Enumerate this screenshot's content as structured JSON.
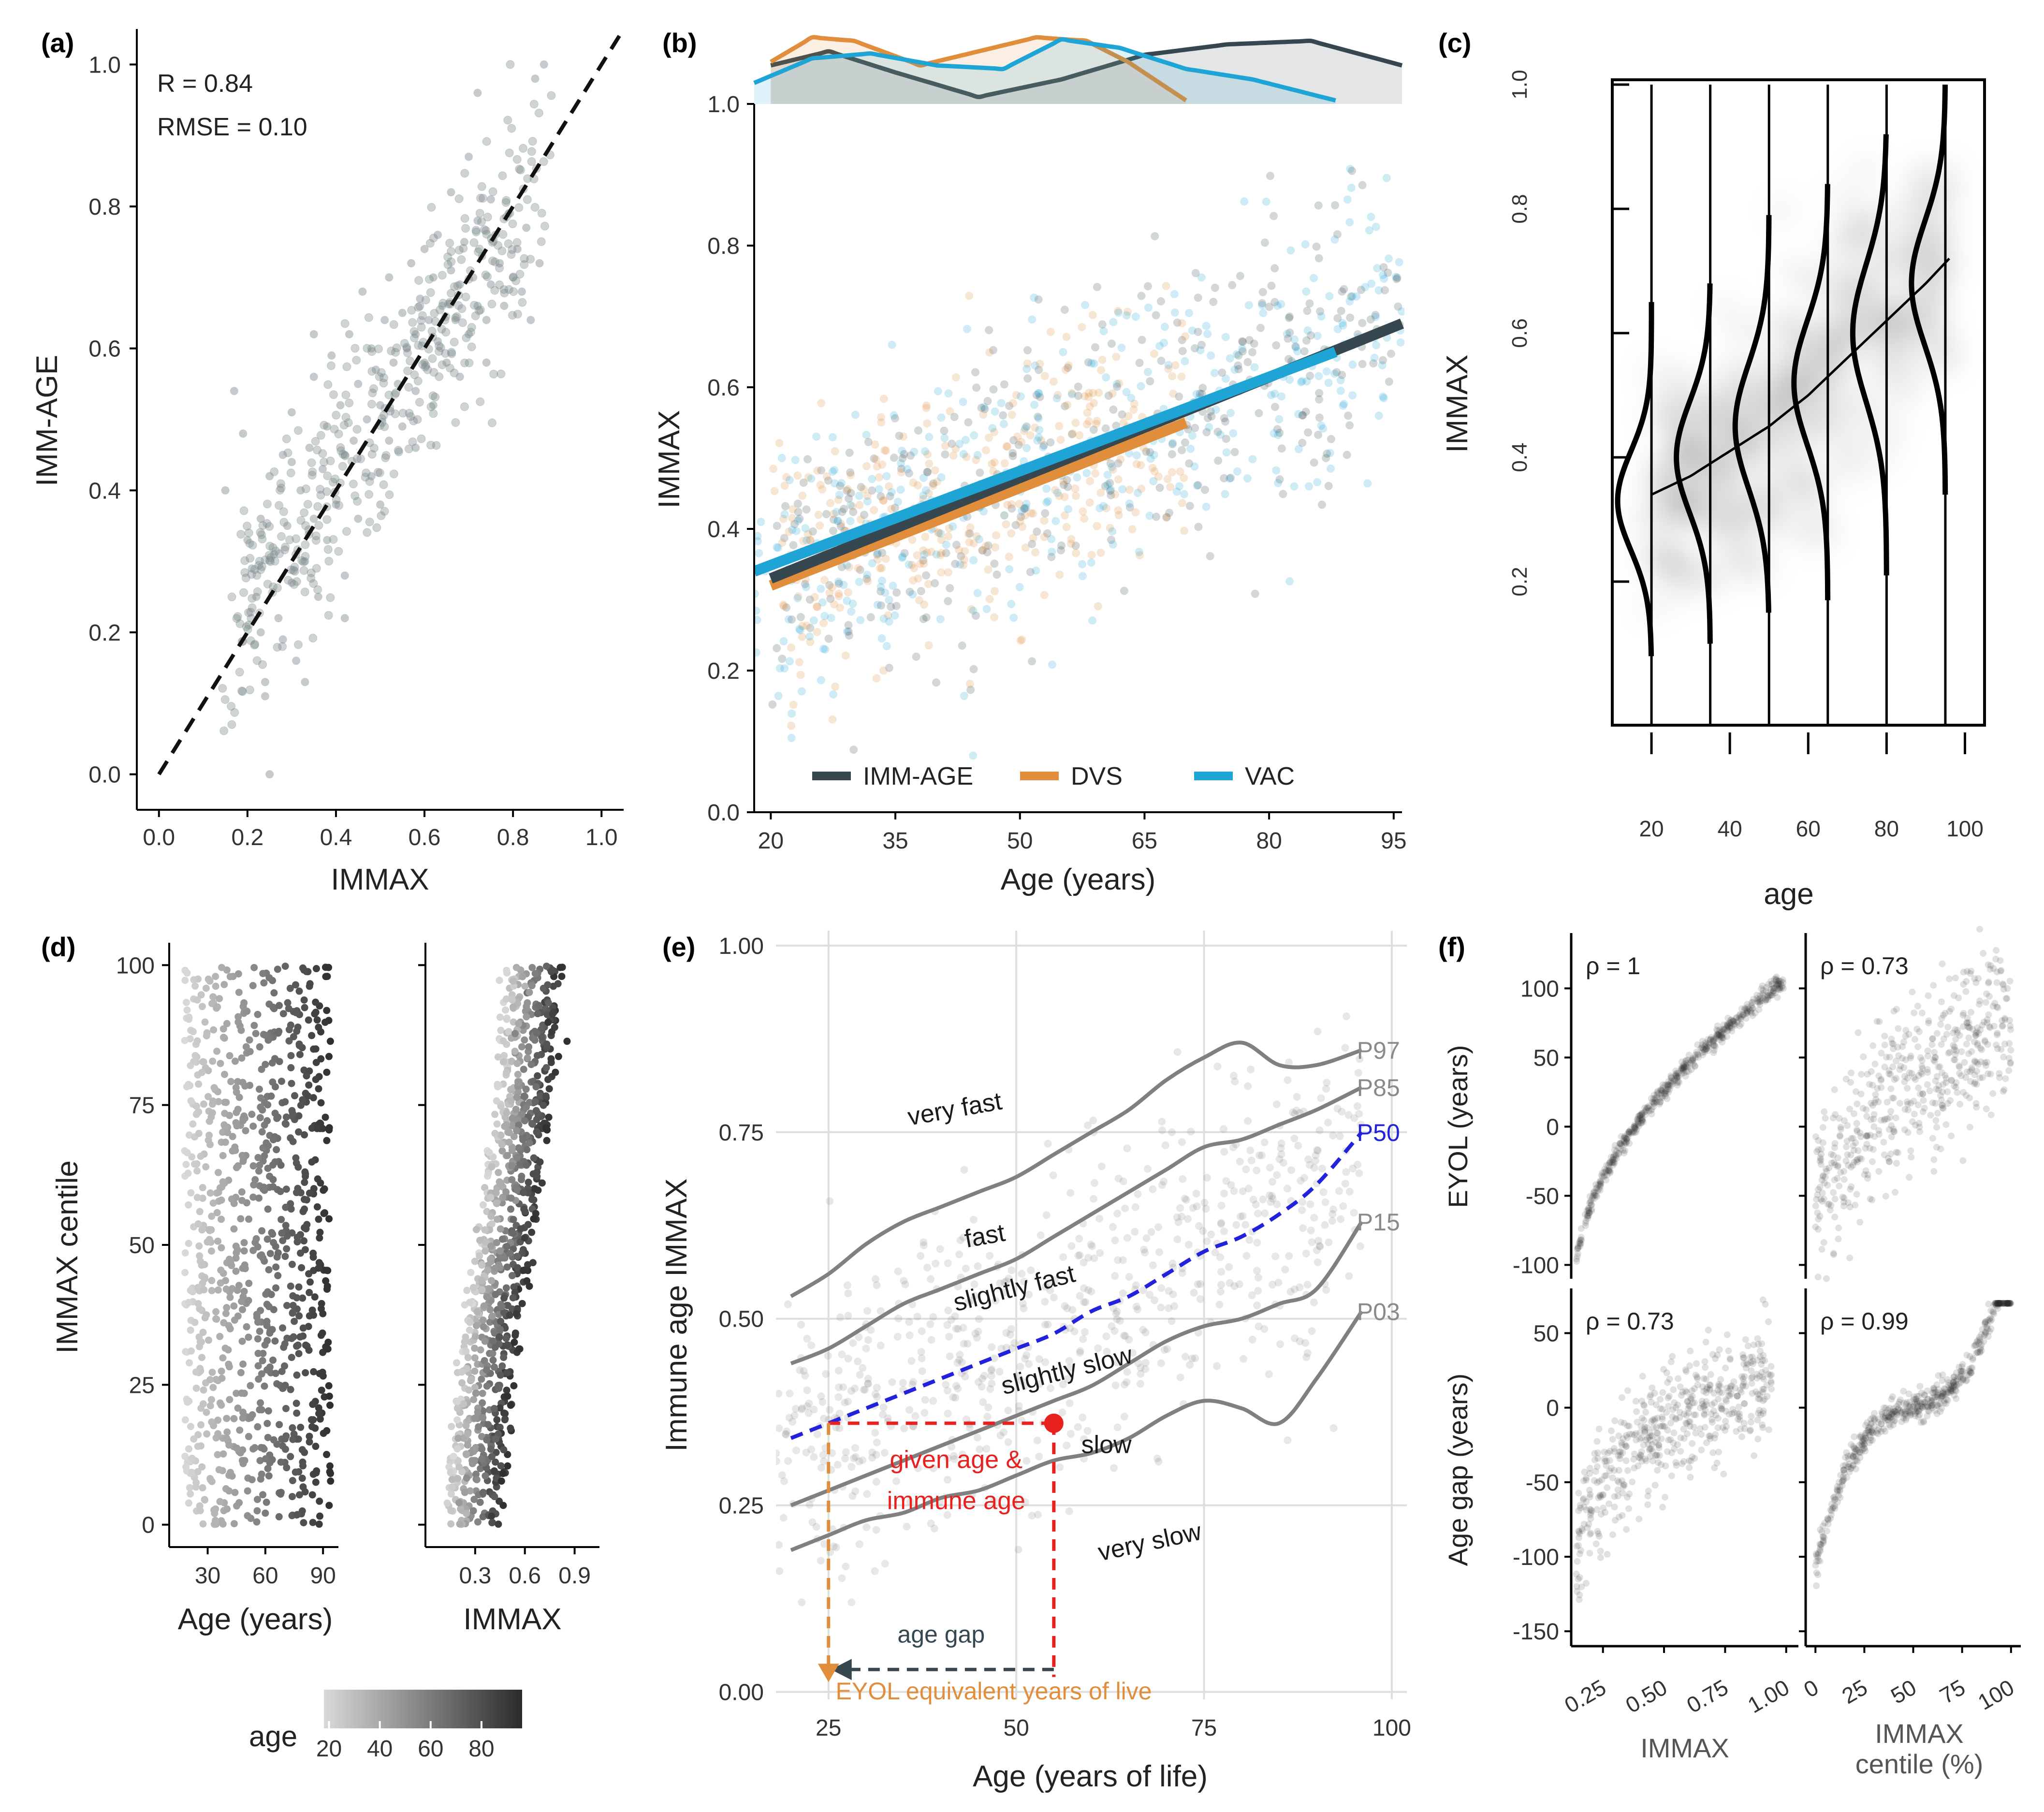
{
  "panels": {
    "a": {
      "letter": "(a)"
    },
    "b": {
      "letter": "(b)"
    },
    "c": {
      "letter": "(c)"
    },
    "d": {
      "letter": "(d)"
    },
    "e": {
      "letter": "(e)"
    },
    "f": {
      "letter": "(f)"
    }
  },
  "chart_data": [
    {
      "id": "a",
      "type": "scatter",
      "xlabel": "IMMAX",
      "ylabel": "IMM-AGE",
      "xlim": [
        -0.05,
        1.05
      ],
      "ylim": [
        -0.05,
        1.05
      ],
      "xticks": [
        "0.0",
        "0.2",
        "0.4",
        "0.6",
        "0.8",
        "1.0"
      ],
      "yticks": [
        "0.0",
        "0.2",
        "0.4",
        "0.6",
        "0.8",
        "1.0"
      ],
      "annotations": [
        "R =  0.84",
        "RMSE = 0.10"
      ],
      "reference_line": {
        "x": [
          0,
          1.05
        ],
        "y": [
          0,
          1.05
        ],
        "style": "dashed"
      },
      "points": [
        [
          0.15,
          0.4
        ],
        [
          0.17,
          0.54
        ],
        [
          0.19,
          0.48
        ],
        [
          0.2,
          0.33
        ],
        [
          0.21,
          0.29
        ],
        [
          0.22,
          0.25
        ],
        [
          0.23,
          0.2
        ],
        [
          0.23,
          0.36
        ],
        [
          0.24,
          0.13
        ],
        [
          0.24,
          0.11
        ],
        [
          0.25,
          0.0
        ],
        [
          0.25,
          0.42
        ],
        [
          0.26,
          0.31
        ],
        [
          0.27,
          0.22
        ],
        [
          0.28,
          0.19
        ],
        [
          0.28,
          0.45
        ],
        [
          0.29,
          0.35
        ],
        [
          0.3,
          0.27
        ],
        [
          0.3,
          0.51
        ],
        [
          0.31,
          0.16
        ],
        [
          0.32,
          0.4
        ],
        [
          0.33,
          0.3
        ],
        [
          0.33,
          0.13
        ],
        [
          0.34,
          0.46
        ],
        [
          0.35,
          0.36
        ],
        [
          0.35,
          0.56
        ],
        [
          0.36,
          0.25
        ],
        [
          0.37,
          0.43
        ],
        [
          0.38,
          0.49
        ],
        [
          0.38,
          0.33
        ],
        [
          0.39,
          0.59
        ],
        [
          0.4,
          0.38
        ],
        [
          0.41,
          0.52
        ],
        [
          0.42,
          0.28
        ],
        [
          0.42,
          0.45
        ],
        [
          0.43,
          0.62
        ],
        [
          0.44,
          0.47
        ],
        [
          0.45,
          0.55
        ],
        [
          0.45,
          0.36
        ],
        [
          0.46,
          0.68
        ],
        [
          0.47,
          0.5
        ],
        [
          0.48,
          0.42
        ],
        [
          0.48,
          0.6
        ],
        [
          0.49,
          0.57
        ],
        [
          0.5,
          0.52
        ],
        [
          0.51,
          0.64
        ],
        [
          0.52,
          0.47
        ],
        [
          0.52,
          0.7
        ],
        [
          0.53,
          0.58
        ],
        [
          0.54,
          0.55
        ],
        [
          0.55,
          0.65
        ],
        [
          0.55,
          0.49
        ],
        [
          0.56,
          0.6
        ],
        [
          0.57,
          0.72
        ],
        [
          0.58,
          0.62
        ],
        [
          0.58,
          0.54
        ],
        [
          0.59,
          0.67
        ],
        [
          0.6,
          0.74
        ],
        [
          0.6,
          0.58
        ],
        [
          0.61,
          0.64
        ],
        [
          0.62,
          0.7
        ],
        [
          0.63,
          0.61
        ],
        [
          0.63,
          0.76
        ],
        [
          0.64,
          0.66
        ],
        [
          0.65,
          0.58
        ],
        [
          0.66,
          0.71
        ],
        [
          0.66,
          0.82
        ],
        [
          0.67,
          0.64
        ],
        [
          0.68,
          0.69
        ],
        [
          0.69,
          0.75
        ],
        [
          0.7,
          0.62
        ],
        [
          0.7,
          0.87
        ],
        [
          0.71,
          0.7
        ],
        [
          0.72,
          0.66
        ],
        [
          0.72,
          0.78
        ],
        [
          0.73,
          0.73
        ],
        [
          0.74,
          0.64
        ],
        [
          0.75,
          0.81
        ],
        [
          0.75,
          0.69
        ],
        [
          0.76,
          0.76
        ],
        [
          0.77,
          0.72
        ],
        [
          0.78,
          0.66
        ],
        [
          0.79,
          0.79
        ],
        [
          0.8,
          0.7
        ],
        [
          0.81,
          0.74
        ],
        [
          0.82,
          0.68
        ],
        [
          0.83,
          0.77
        ],
        [
          0.84,
          0.64
        ],
        [
          0.85,
          0.98
        ],
        [
          0.86,
          0.72
        ],
        [
          0.87,
          1.0
        ],
        [
          0.72,
          0.96
        ],
        [
          0.74,
          0.58
        ],
        [
          0.35,
          0.62
        ],
        [
          0.42,
          0.22
        ],
        [
          0.3,
          0.44
        ],
        [
          0.5,
          0.38
        ],
        [
          0.58,
          0.46
        ],
        [
          0.62,
          0.52
        ],
        [
          0.68,
          0.56
        ]
      ],
      "cloud_model": {
        "slope": 0.92,
        "intercept": 0.05,
        "n": 420
      }
    },
    {
      "id": "b",
      "type": "scatter",
      "xlabel": "Age (years)",
      "ylabel": "IMMAX",
      "xlim": [
        18,
        96
      ],
      "ylim": [
        0,
        1.0
      ],
      "xticks": [
        "20",
        "35",
        "50",
        "65",
        "80",
        "95"
      ],
      "yticks": [
        "0.0",
        "0.2",
        "0.4",
        "0.6",
        "0.8",
        "1.0"
      ],
      "legend_position": "bottom",
      "series": [
        {
          "name": "IMM-AGE",
          "color": "#37474f",
          "line": {
            "x": [
              20,
              96
            ],
            "y": [
              0.33,
              0.69
            ]
          },
          "density": {
            "x": [
              20,
              27,
              35,
              45,
              55,
              65,
              75,
              85,
              96
            ],
            "y": [
              0.55,
              0.75,
              0.45,
              0.1,
              0.35,
              0.7,
              0.85,
              0.9,
              0.55
            ]
          },
          "cloud": {
            "xmin": 20,
            "xmax": 96,
            "n": 380
          }
        },
        {
          "name": "DVS",
          "color": "#e08d3c",
          "line": {
            "x": [
              20,
              70
            ],
            "y": [
              0.32,
              0.55
            ]
          },
          "density": {
            "x": [
              20,
              25,
              30,
              38,
              45,
              52,
              58,
              63,
              70
            ],
            "y": [
              0.6,
              0.95,
              0.9,
              0.55,
              0.75,
              0.95,
              0.9,
              0.6,
              0.05
            ]
          },
          "cloud": {
            "xmin": 20,
            "xmax": 70,
            "n": 360
          }
        },
        {
          "name": "VAC",
          "color": "#1ea5d6",
          "line": {
            "x": [
              18,
              88
            ],
            "y": [
              0.34,
              0.65
            ]
          },
          "density": {
            "x": [
              18,
              25,
              32,
              40,
              48,
              55,
              62,
              70,
              78,
              88
            ],
            "y": [
              0.3,
              0.65,
              0.72,
              0.55,
              0.5,
              0.92,
              0.8,
              0.5,
              0.35,
              0.05
            ]
          },
          "cloud": {
            "xmin": 18,
            "xmax": 96,
            "n": 400
          }
        }
      ]
    },
    {
      "id": "c",
      "type": "heatmap",
      "xlabel": "age",
      "ylabel": "IMMAX",
      "xlim": [
        10,
        105
      ],
      "ylim": [
        0,
        1.0
      ],
      "xticks": [
        "20",
        "40",
        "60",
        "80",
        "100"
      ],
      "yticks": [
        "0.2",
        "0.4",
        "0.6",
        "0.8",
        "1.0"
      ],
      "trend": {
        "x": [
          20,
          30,
          40,
          50,
          60,
          70,
          80,
          90,
          96
        ],
        "y": [
          0.34,
          0.37,
          0.41,
          0.45,
          0.5,
          0.56,
          0.62,
          0.68,
          0.72
        ]
      },
      "densities": [
        {
          "age": 20,
          "mean": 0.33,
          "sd": 0.08,
          "ymin": 0.08,
          "ymax": 0.65
        },
        {
          "age": 35,
          "mean": 0.4,
          "sd": 0.09,
          "ymin": 0.1,
          "ymax": 0.68
        },
        {
          "age": 50,
          "mean": 0.45,
          "sd": 0.1,
          "ymin": 0.15,
          "ymax": 0.79
        },
        {
          "age": 65,
          "mean": 0.52,
          "sd": 0.1,
          "ymin": 0.17,
          "ymax": 0.84
        },
        {
          "age": 80,
          "mean": 0.6,
          "sd": 0.11,
          "ymin": 0.21,
          "ymax": 0.92
        },
        {
          "age": 95,
          "mean": 0.68,
          "sd": 0.1,
          "ymin": 0.34,
          "ymax": 1.0
        }
      ]
    },
    {
      "id": "d_left",
      "type": "scatter",
      "xlabel": "Age (years)",
      "ylabel": "IMMAX centile",
      "xlim": [
        10,
        98
      ],
      "ylim": [
        -4,
        104
      ],
      "xticks": [
        "30",
        "60",
        "90"
      ],
      "yticks": [
        "0",
        "25",
        "50",
        "75",
        "100"
      ],
      "cloud": {
        "n": 900,
        "xmin": 18,
        "xmax": 94
      }
    },
    {
      "id": "d_right",
      "type": "scatter",
      "xlabel": "IMMAX",
      "xlim": [
        0.0,
        1.05
      ],
      "ylim": [
        -4,
        104
      ],
      "xticks": [
        "0.3",
        "0.6",
        "0.9"
      ],
      "cloud": {
        "n": 900
      }
    },
    {
      "id": "d_legend",
      "type": "legend",
      "title": "age",
      "ticks": [
        "20",
        "40",
        "60",
        "80"
      ],
      "range": [
        18,
        96
      ],
      "colors": [
        "#d9d9d9",
        "#2b2b2b"
      ]
    },
    {
      "id": "e",
      "type": "line",
      "xlabel": "Age (years of life)",
      "ylabel": "Immune age IMMAX",
      "xlim": [
        18,
        102
      ],
      "ylim": [
        -0.01,
        1.02
      ],
      "xticks": [
        "25",
        "50",
        "75",
        "100"
      ],
      "yticks": [
        "0.00",
        "0.25",
        "0.50",
        "0.75",
        "1.00"
      ],
      "series": [
        {
          "name": "P97",
          "style": "solid",
          "color": "#808080",
          "x": [
            20,
            25,
            30,
            35,
            40,
            45,
            50,
            55,
            60,
            65,
            70,
            75,
            80,
            85,
            90,
            96
          ],
          "y": [
            0.53,
            0.56,
            0.6,
            0.63,
            0.65,
            0.67,
            0.69,
            0.72,
            0.75,
            0.78,
            0.82,
            0.85,
            0.87,
            0.84,
            0.84,
            0.86
          ]
        },
        {
          "name": "P85",
          "style": "solid",
          "color": "#808080",
          "x": [
            20,
            25,
            30,
            35,
            40,
            45,
            50,
            55,
            60,
            65,
            70,
            75,
            80,
            85,
            90,
            96
          ],
          "y": [
            0.44,
            0.46,
            0.49,
            0.52,
            0.54,
            0.56,
            0.58,
            0.61,
            0.64,
            0.67,
            0.7,
            0.73,
            0.74,
            0.76,
            0.78,
            0.81
          ]
        },
        {
          "name": "P50",
          "style": "dashed",
          "color": "#2222dd",
          "x": [
            20,
            25,
            30,
            35,
            40,
            45,
            50,
            55,
            60,
            65,
            70,
            75,
            80,
            85,
            90,
            96
          ],
          "y": [
            0.34,
            0.36,
            0.38,
            0.4,
            0.42,
            0.44,
            0.46,
            0.48,
            0.51,
            0.53,
            0.56,
            0.59,
            0.61,
            0.64,
            0.68,
            0.75
          ]
        },
        {
          "name": "P15",
          "style": "solid",
          "color": "#808080",
          "x": [
            20,
            25,
            30,
            35,
            40,
            45,
            50,
            55,
            60,
            65,
            70,
            75,
            80,
            85,
            90,
            96
          ],
          "y": [
            0.25,
            0.27,
            0.29,
            0.31,
            0.33,
            0.35,
            0.37,
            0.39,
            0.41,
            0.44,
            0.47,
            0.49,
            0.5,
            0.52,
            0.54,
            0.63
          ]
        },
        {
          "name": "P03",
          "style": "solid",
          "color": "#808080",
          "x": [
            20,
            25,
            30,
            35,
            40,
            45,
            50,
            55,
            60,
            65,
            70,
            75,
            80,
            85,
            90,
            96
          ],
          "y": [
            0.19,
            0.21,
            0.23,
            0.24,
            0.26,
            0.27,
            0.29,
            0.31,
            0.32,
            0.34,
            0.37,
            0.39,
            0.38,
            0.36,
            0.42,
            0.51
          ]
        }
      ],
      "region_labels": [
        {
          "text": "very fast",
          "x": 42,
          "y": 0.77,
          "angle": -10
        },
        {
          "text": "fast",
          "x": 46,
          "y": 0.6,
          "angle": -10
        },
        {
          "text": "slightly fast",
          "x": 50,
          "y": 0.53,
          "angle": -14
        },
        {
          "text": "slightly slow",
          "x": 57,
          "y": 0.42,
          "angle": -14
        },
        {
          "text": "slow",
          "x": 62,
          "y": 0.32,
          "angle": 0
        },
        {
          "text": "very slow",
          "x": 68,
          "y": 0.19,
          "angle": -12
        }
      ],
      "curve_labels": [
        "P97",
        "P85",
        "P50",
        "P15",
        "P03"
      ],
      "example": {
        "age": 55,
        "immax": 0.36,
        "eyol": 25,
        "label_line1": "given age &",
        "label_line2": "immune age",
        "gap_label": "age gap",
        "eyol_label": "EYOL equivalent years of live"
      },
      "cloud": {
        "n": 700,
        "xmin": 18,
        "xmax": 96
      }
    },
    {
      "id": "f",
      "type": "scatter",
      "rows": [
        {
          "ylabel": "EYOL (years)",
          "yticks": [
            "100",
            "50",
            "0",
            "-50",
            "-100"
          ],
          "ylim": [
            -110,
            140
          ]
        },
        {
          "ylabel": "Age gap (years)",
          "yticks": [
            "50",
            "0",
            "-50",
            "-100",
            "-150"
          ],
          "ylim": [
            -160,
            80
          ]
        }
      ],
      "cols": [
        {
          "xlabel": "IMMAX",
          "xticks": [
            "0.25",
            "0.50",
            "0.75",
            "1.00"
          ],
          "xlim": [
            0.12,
            1.05
          ]
        },
        {
          "xlabel_line1": "IMMAX",
          "xlabel_line2": "centile (%)",
          "xticks": [
            "0",
            "25",
            "50",
            "75",
            "100"
          ],
          "xlim": [
            -5,
            105
          ]
        }
      ],
      "rho": [
        "ρ = 1",
        "ρ = 0.73",
        "ρ = 0.73",
        "ρ = 0.99"
      ]
    }
  ]
}
